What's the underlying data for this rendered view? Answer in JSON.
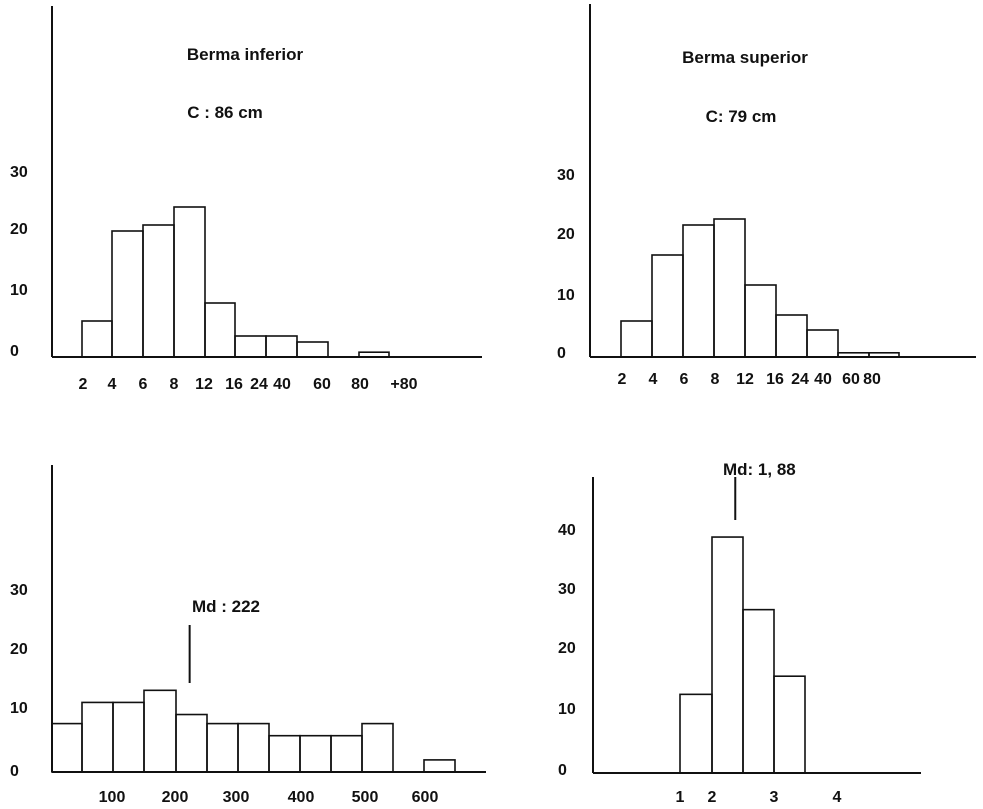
{
  "colors": {
    "ink": "#111111",
    "background": "#ffffff"
  },
  "chart_data": [
    {
      "type": "bar",
      "title": "Berma inferior",
      "subtitle": "C : 86 cm",
      "xlabel": "",
      "ylabel": "",
      "categories": [
        "0-2",
        "2-4",
        "4-6",
        "6-8",
        "8-12",
        "12-16",
        "16-24",
        "24-40",
        "40-60",
        "60-80",
        "80-+80"
      ],
      "values": [
        0,
        6,
        21,
        22,
        25,
        9,
        3.5,
        3.5,
        2.5,
        0,
        0.8
      ],
      "y_ticks": [
        "0",
        "10",
        "20",
        "30"
      ],
      "x_ticks": [
        "2",
        "4",
        "6",
        "8",
        "12",
        "16",
        "24",
        "40",
        "60",
        "80",
        "+80"
      ],
      "ylim": [
        0,
        52
      ]
    },
    {
      "type": "bar",
      "title": "Berma superior",
      "subtitle": "C: 79 cm",
      "xlabel": "",
      "ylabel": "",
      "categories": [
        "0-2",
        "2-4",
        "4-6",
        "6-8",
        "8-12",
        "12-16",
        "16-24",
        "24-40",
        "40-60",
        "60-80"
      ],
      "values": [
        0,
        6,
        17,
        22,
        23,
        12,
        7,
        4.5,
        0.7,
        0.7
      ],
      "y_ticks": [
        "0",
        "10",
        "20",
        "30"
      ],
      "x_ticks": [
        "2",
        "4",
        "6",
        "8",
        "12",
        "16",
        "24",
        "40",
        "60",
        "80"
      ],
      "ylim": [
        0,
        52
      ]
    },
    {
      "type": "bar",
      "title": "",
      "xlabel": "",
      "ylabel": "",
      "categories": [
        "0-50",
        "50-100",
        "100-150",
        "150-200",
        "200-250",
        "250-300",
        "300-350",
        "350-400",
        "400-450",
        "450-500",
        "500-550",
        "550-600",
        "600-650"
      ],
      "values": [
        8,
        11.5,
        11.5,
        13.5,
        9.5,
        8,
        8,
        6,
        6,
        6,
        8,
        0,
        2
      ],
      "y_ticks": [
        "0",
        "10",
        "20",
        "30"
      ],
      "x_ticks": [
        "100",
        "200",
        "300",
        "400",
        "500",
        "600"
      ],
      "ylim": [
        0,
        49
      ],
      "median": 222,
      "median_label": "Md : 222"
    },
    {
      "type": "bar",
      "title": "",
      "xlabel": "",
      "ylabel": "",
      "categories": [
        "1-1.5",
        "1.5-2",
        "2-2.5",
        "2.5-3",
        "3-3.5",
        "3.5-4"
      ],
      "values": [
        13,
        39,
        27,
        16,
        0,
        1.5
      ],
      "y_ticks": [
        "0",
        "10",
        "20",
        "30",
        "40"
      ],
      "x_ticks": [
        "1",
        "2",
        "3",
        "4"
      ],
      "ylim": [
        0,
        49
      ],
      "median": 1.88,
      "median_label": "Md: 1, 88"
    }
  ]
}
